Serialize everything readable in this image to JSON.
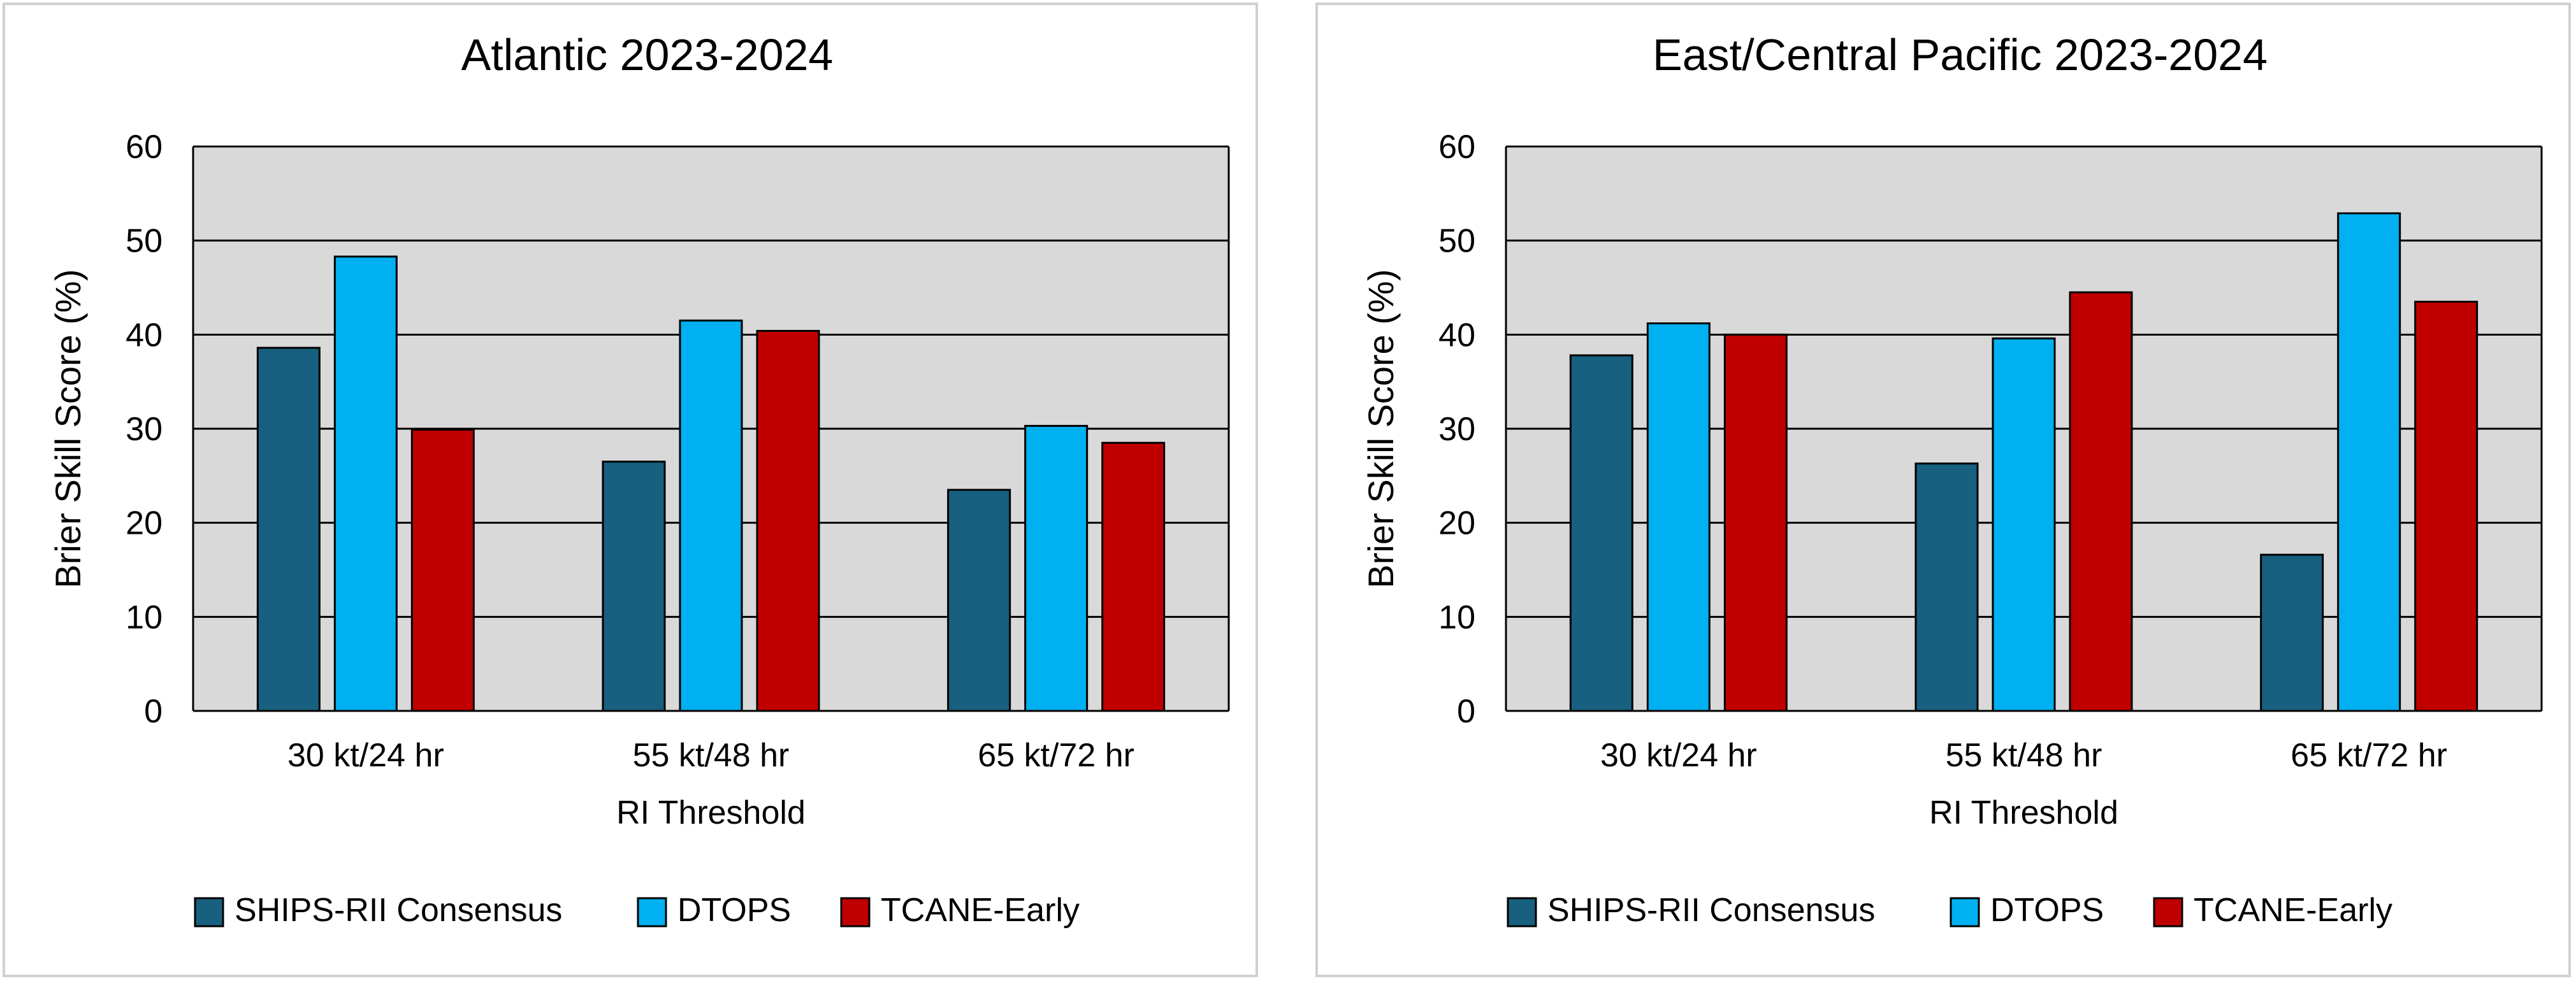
{
  "colors": {
    "plot_background": "#d9d9d9",
    "gridline": "#000000",
    "bar_outline": "#000000"
  },
  "chart_data": [
    {
      "type": "bar",
      "title": "Atlantic 2023-2024",
      "xlabel": "RI Threshold",
      "ylabel": "Brier Skill Score (%)",
      "ylim": [
        0,
        60
      ],
      "yticks": [
        0,
        10,
        20,
        30,
        40,
        50,
        60
      ],
      "grid": true,
      "legend_position": "bottom",
      "categories": [
        "30 kt/24 hr",
        "55 kt/48 hr",
        "65 kt/72 hr"
      ],
      "series": [
        {
          "name": "SHIPS-RII Consensus",
          "color": "#17607f",
          "values": [
            38.6,
            26.5,
            23.5
          ]
        },
        {
          "name": "DTOPS",
          "color": "#00b0f0",
          "values": [
            48.3,
            41.5,
            30.3
          ]
        },
        {
          "name": "TCANE-Early",
          "color": "#c00000",
          "values": [
            29.9,
            40.4,
            28.5
          ]
        }
      ]
    },
    {
      "type": "bar",
      "title": "East/Central Pacific 2023-2024",
      "xlabel": "RI Threshold",
      "ylabel": "Brier Skill Score (%)",
      "ylim": [
        0,
        60
      ],
      "yticks": [
        0,
        10,
        20,
        30,
        40,
        50,
        60
      ],
      "grid": true,
      "legend_position": "bottom",
      "categories": [
        "30 kt/24 hr",
        "55 kt/48 hr",
        "65 kt/72 hr"
      ],
      "series": [
        {
          "name": "SHIPS-RII Consensus",
          "color": "#17607f",
          "values": [
            37.8,
            26.3,
            16.6
          ]
        },
        {
          "name": "DTOPS",
          "color": "#00b0f0",
          "values": [
            41.2,
            39.6,
            52.9
          ]
        },
        {
          "name": "TCANE-Early",
          "color": "#c00000",
          "values": [
            40.0,
            44.5,
            43.5
          ]
        }
      ]
    }
  ]
}
